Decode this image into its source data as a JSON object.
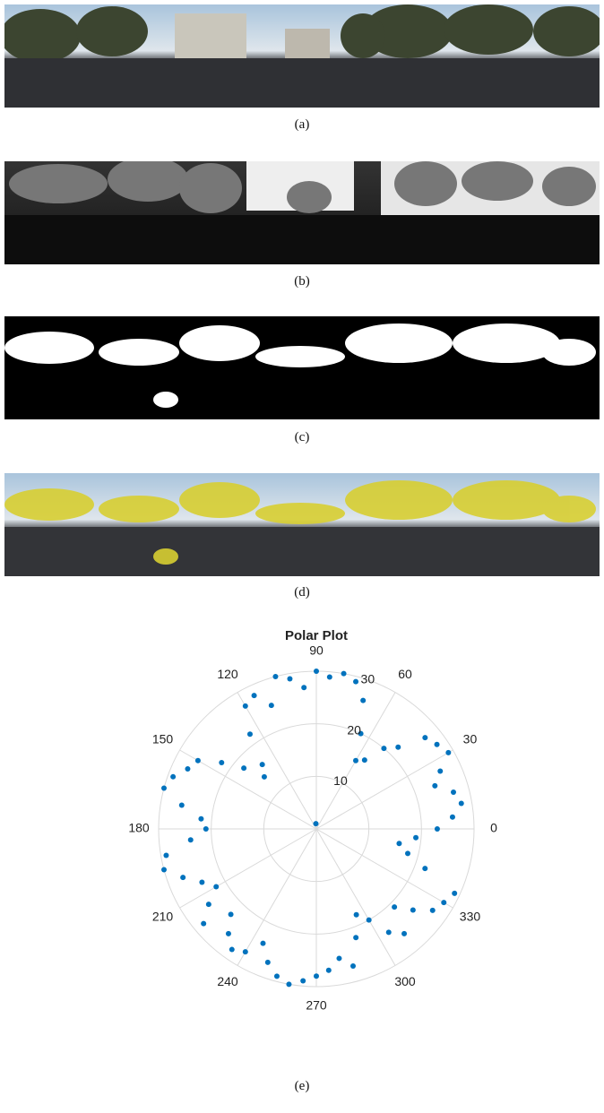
{
  "figure": {
    "captions": [
      "(a)",
      "(b)",
      "(c)",
      "(d)",
      "(e)"
    ]
  },
  "chart_data": {
    "type": "polar-scatter",
    "title": "Polar Plot",
    "color": "#0072bd",
    "theta": [
      0,
      5,
      10,
      15,
      20,
      25,
      30,
      35,
      40,
      45,
      50,
      55,
      60,
      65,
      70,
      75,
      80,
      85,
      90,
      95,
      100,
      105,
      110,
      115,
      120,
      125,
      130,
      135,
      140,
      145,
      150,
      155,
      160,
      165,
      170,
      175,
      180,
      185,
      190,
      195,
      200,
      205,
      210,
      215,
      220,
      225,
      230,
      235,
      240,
      245,
      250,
      255,
      260,
      265,
      270,
      275,
      280,
      285,
      290,
      295,
      300,
      305,
      310,
      315,
      320,
      325,
      330,
      335,
      340,
      345,
      350,
      355,
      95
    ],
    "r": [
      23,
      26,
      28,
      27,
      24,
      26,
      29,
      28,
      27,
      22,
      20,
      16,
      15,
      20,
      26,
      29,
      30,
      29,
      30,
      27,
      29,
      30,
      25,
      28,
      27,
      22,
      16,
      14,
      18,
      22,
      26,
      27,
      29,
      30,
      26,
      22,
      21,
      24,
      29,
      30,
      27,
      24,
      22,
      25,
      28,
      23,
      26,
      28,
      27,
      24,
      27,
      29,
      30,
      29,
      28,
      27,
      25,
      27,
      22,
      18,
      20,
      24,
      26,
      21,
      24,
      27,
      28,
      29,
      22,
      18,
      16,
      19,
      1
    ],
    "rlim": [
      0,
      30
    ],
    "rticks": [
      10,
      20,
      30
    ],
    "thetaticks": [
      0,
      30,
      60,
      90,
      120,
      150,
      180,
      210,
      240,
      270,
      300,
      330
    ],
    "grid": true
  }
}
